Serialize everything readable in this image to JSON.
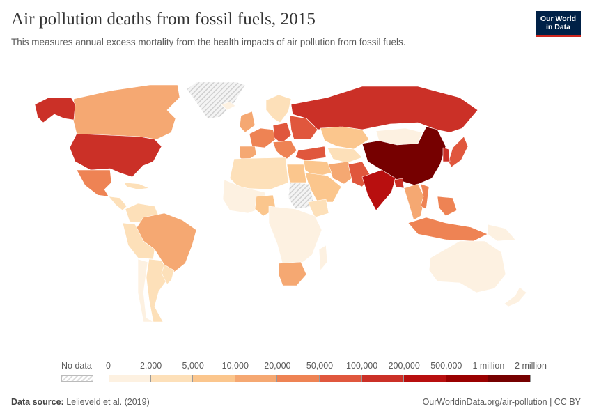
{
  "header": {
    "title": "Air pollution deaths from fossil fuels, 2015",
    "subtitle": "This measures annual excess mortality from the health impacts of air pollution from fossil fuels."
  },
  "logo": {
    "line1": "Our World",
    "line2": "in Data"
  },
  "legend": {
    "no_data_label": "No data",
    "ticks": [
      "0",
      "2,000",
      "5,000",
      "10,000",
      "20,000",
      "50,000",
      "100,000",
      "200,000",
      "500,000",
      "1 million",
      "2 million"
    ],
    "bin_colors": [
      "#fdf1e1",
      "#fde0b9",
      "#fbc68d",
      "#f5a872",
      "#ee8354",
      "#e0573d",
      "#cb3027",
      "#b80f0f",
      "#9a0000",
      "#760000"
    ],
    "no_data_color": "#dddddd"
  },
  "footer": {
    "source_label": "Data source:",
    "source_value": "Lelieveld et al. (2019)",
    "url": "OurWorldinData.org/air-pollution | CC BY"
  },
  "map_data": {
    "regions": [
      {
        "name": "Canada",
        "bin": 3
      },
      {
        "name": "Alaska",
        "bin": 6
      },
      {
        "name": "Greenland",
        "bin": -1
      },
      {
        "name": "United States",
        "bin": 6
      },
      {
        "name": "Mexico",
        "bin": 4
      },
      {
        "name": "Central America",
        "bin": 1
      },
      {
        "name": "Caribbean",
        "bin": 1
      },
      {
        "name": "Colombia / Venezuela",
        "bin": 1
      },
      {
        "name": "Brazil",
        "bin": 3
      },
      {
        "name": "Peru / Bolivia",
        "bin": 1
      },
      {
        "name": "Argentina",
        "bin": 1
      },
      {
        "name": "Chile",
        "bin": 0
      },
      {
        "name": "Uruguay",
        "bin": 1
      },
      {
        "name": "Iceland",
        "bin": 0
      },
      {
        "name": "UK / Ireland",
        "bin": 3
      },
      {
        "name": "Scandinavia",
        "bin": 1
      },
      {
        "name": "Western Europe",
        "bin": 4
      },
      {
        "name": "Central Europe",
        "bin": 5
      },
      {
        "name": "Eastern Europe",
        "bin": 5
      },
      {
        "name": "Spain / Portugal",
        "bin": 3
      },
      {
        "name": "Italy / Balkans",
        "bin": 4
      },
      {
        "name": "Turkey",
        "bin": 5
      },
      {
        "name": "Russia",
        "bin": 6
      },
      {
        "name": "Kazakhstan",
        "bin": 2
      },
      {
        "name": "Central Asia",
        "bin": 1
      },
      {
        "name": "Mongolia",
        "bin": 0
      },
      {
        "name": "China",
        "bin": 9
      },
      {
        "name": "Japan",
        "bin": 5
      },
      {
        "name": "Korea",
        "bin": 6
      },
      {
        "name": "Iran",
        "bin": 3
      },
      {
        "name": "Pakistan",
        "bin": 5
      },
      {
        "name": "India",
        "bin": 7
      },
      {
        "name": "Bangladesh",
        "bin": 6
      },
      {
        "name": "Middle East",
        "bin": 2
      },
      {
        "name": "Saudi Arabia",
        "bin": 2
      },
      {
        "name": "Egypt",
        "bin": 2
      },
      {
        "name": "North Africa",
        "bin": 1
      },
      {
        "name": "Sudan",
        "bin": -1
      },
      {
        "name": "West Africa",
        "bin": 0
      },
      {
        "name": "Nigeria",
        "bin": 2
      },
      {
        "name": "Ethiopia",
        "bin": 1
      },
      {
        "name": "Central & East Africa",
        "bin": 0
      },
      {
        "name": "South Africa",
        "bin": 3
      },
      {
        "name": "Madagascar",
        "bin": 0
      },
      {
        "name": "Southeast Asia mainland",
        "bin": 3
      },
      {
        "name": "Vietnam",
        "bin": 4
      },
      {
        "name": "Indonesia",
        "bin": 4
      },
      {
        "name": "Philippines",
        "bin": 4
      },
      {
        "name": "Papua New Guinea",
        "bin": 0
      },
      {
        "name": "Australia",
        "bin": 0
      },
      {
        "name": "New Zealand",
        "bin": 0
      }
    ]
  }
}
